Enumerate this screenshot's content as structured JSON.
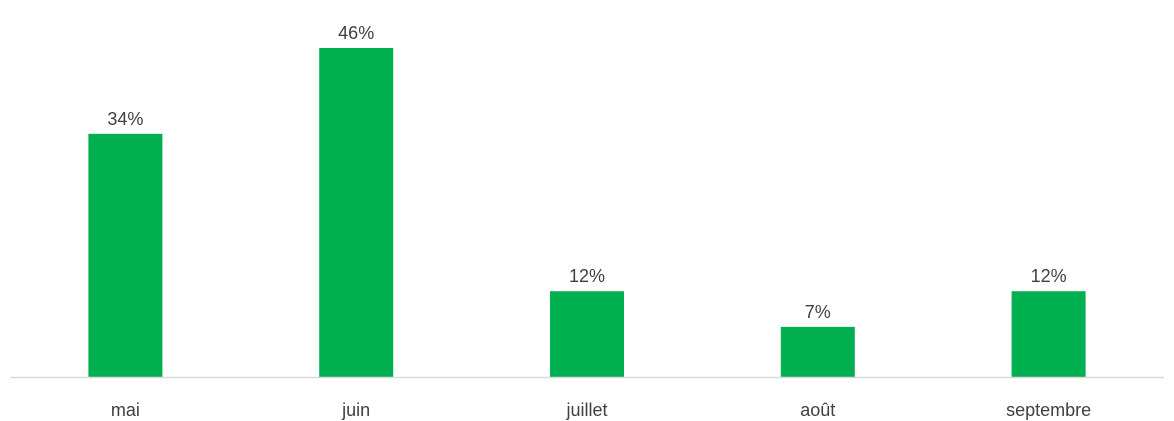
{
  "chart_data": {
    "type": "bar",
    "title": "",
    "xlabel": "",
    "ylabel": "",
    "categories": [
      "mai",
      "juin",
      "juillet",
      "août",
      "septembre"
    ],
    "values": [
      34,
      46,
      12,
      7,
      12
    ],
    "data_labels": [
      "34%",
      "46%",
      "12%",
      "7%",
      "12%"
    ],
    "ylim": [
      0,
      46
    ],
    "grid": false,
    "legend": "none",
    "bar_color": "#00b050",
    "axis_color": "#d9d9d9",
    "text_color": "#404040"
  }
}
